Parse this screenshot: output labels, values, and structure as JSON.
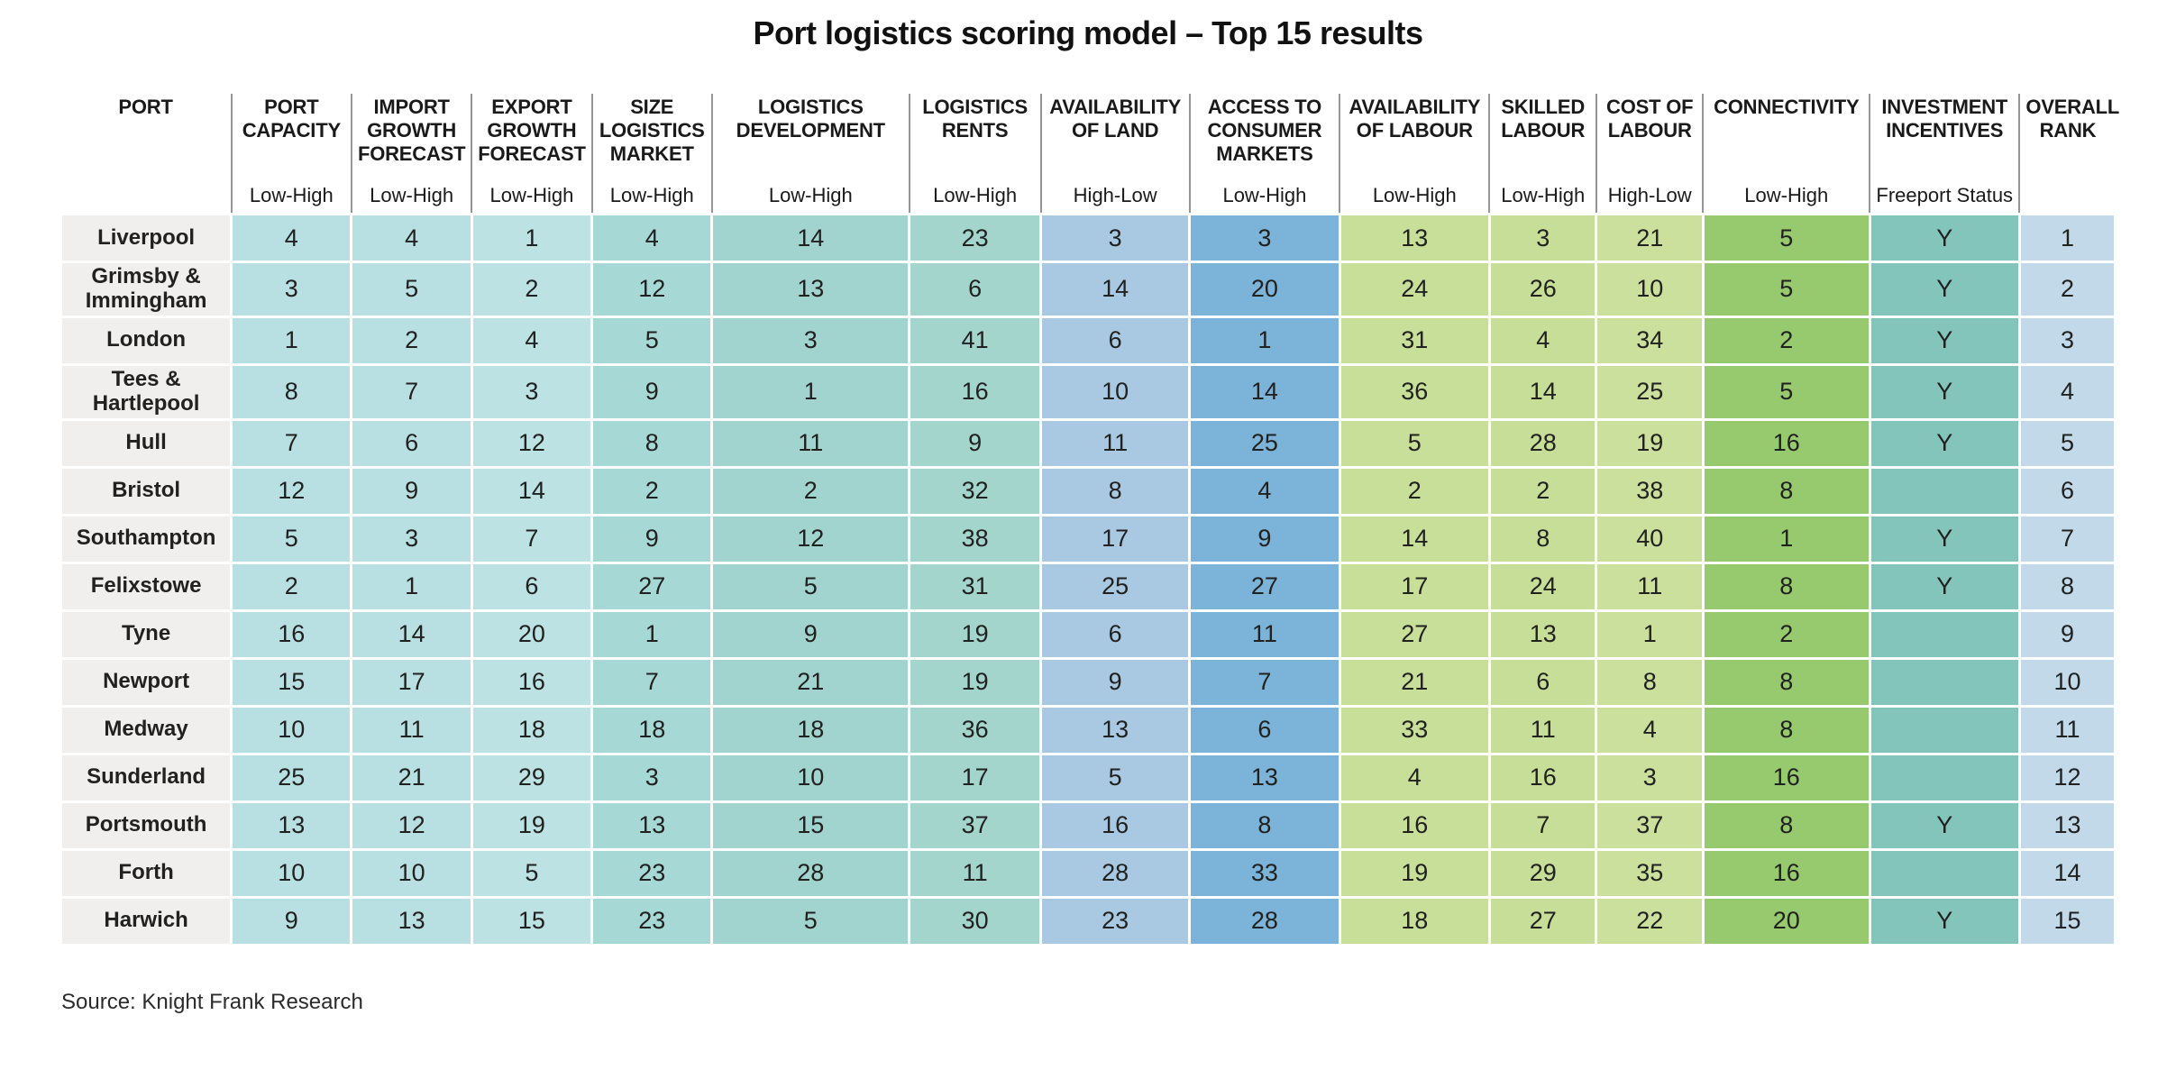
{
  "title": "Port logistics scoring model – Top 15 results",
  "source": "Source: Knight Frank Research",
  "chart_data": {
    "type": "table",
    "title": "Port logistics scoring model – Top 15 results",
    "columns": [
      {
        "key": "port",
        "label": "PORT",
        "sublabel": "",
        "color": "#f0efed"
      },
      {
        "key": "port-capacity",
        "label": "PORT CAPACITY",
        "sublabel": "Low-High",
        "color": "#b8e0e2"
      },
      {
        "key": "import-growth",
        "label": "IMPORT GROWTH FORECAST",
        "sublabel": "Low-High",
        "color": "#b8e0e2"
      },
      {
        "key": "export-growth",
        "label": "EXPORT GROWTH FORECAST",
        "sublabel": "Low-High",
        "color": "#bce2e3"
      },
      {
        "key": "size-logistics",
        "label": "SIZE LOGISTICS MARKET",
        "sublabel": "Low-High",
        "color": "#a6d8d6"
      },
      {
        "key": "logistics-dev",
        "label": "LOGISTICS DEVELOPMENT",
        "sublabel": "Low-High",
        "color": "#a2d4cf"
      },
      {
        "key": "logistics-rents",
        "label": "LOGISTICS RENTS",
        "sublabel": "Low-High",
        "color": "#a3d5cd"
      },
      {
        "key": "availability-land",
        "label": "AVAILABILITY OF LAND",
        "sublabel": "High-Low",
        "color": "#a9c8e2"
      },
      {
        "key": "access-consumer",
        "label": "ACCESS TO CONSUMER MARKETS",
        "sublabel": "Low-High",
        "color": "#7cb3d9"
      },
      {
        "key": "availability-labour",
        "label": "AVAILABILITY OF LABOUR",
        "sublabel": "Low-High",
        "color": "#c8df9a"
      },
      {
        "key": "skilled-labour",
        "label": "SKILLED LABOUR",
        "sublabel": "Low-High",
        "color": "#c7de98"
      },
      {
        "key": "cost-of-labour",
        "label": "COST OF LABOUR",
        "sublabel": "High-Low",
        "color": "#cbe09c"
      },
      {
        "key": "connectivity",
        "label": "CONNECTIVITY",
        "sublabel": "Low-High",
        "color": "#97c96e"
      },
      {
        "key": "investment",
        "label": "INVESTMENT INCENTIVES",
        "sublabel": "Freeport Status",
        "color": "#83c5bb"
      },
      {
        "key": "overall-rank",
        "label": "OVERALL RANK",
        "sublabel": "",
        "color": "#c2d9ea"
      }
    ],
    "col_widths_pct": [
      8.3,
      5.85,
      5.85,
      5.85,
      5.85,
      9.6,
      6.4,
      7.25,
      7.3,
      7.3,
      5.2,
      5.2,
      8.1,
      7.3,
      4.65
    ],
    "rows": [
      {
        "port": "Liverpool",
        "values": [
          "4",
          "4",
          "1",
          "4",
          "14",
          "23",
          "3",
          "3",
          "13",
          "3",
          "21",
          "5",
          "Y",
          "1"
        ]
      },
      {
        "port": "Grimsby & Immingham",
        "values": [
          "3",
          "5",
          "2",
          "12",
          "13",
          "6",
          "14",
          "20",
          "24",
          "26",
          "10",
          "5",
          "Y",
          "2"
        ]
      },
      {
        "port": "London",
        "values": [
          "1",
          "2",
          "4",
          "5",
          "3",
          "41",
          "6",
          "1",
          "31",
          "4",
          "34",
          "2",
          "Y",
          "3"
        ]
      },
      {
        "port": "Tees & Hartlepool",
        "values": [
          "8",
          "7",
          "3",
          "9",
          "1",
          "16",
          "10",
          "14",
          "36",
          "14",
          "25",
          "5",
          "Y",
          "4"
        ]
      },
      {
        "port": "Hull",
        "values": [
          "7",
          "6",
          "12",
          "8",
          "11",
          "9",
          "11",
          "25",
          "5",
          "28",
          "19",
          "16",
          "Y",
          "5"
        ]
      },
      {
        "port": "Bristol",
        "values": [
          "12",
          "9",
          "14",
          "2",
          "2",
          "32",
          "8",
          "4",
          "2",
          "2",
          "38",
          "8",
          "",
          "6"
        ]
      },
      {
        "port": "Southampton",
        "values": [
          "5",
          "3",
          "7",
          "9",
          "12",
          "38",
          "17",
          "9",
          "14",
          "8",
          "40",
          "1",
          "Y",
          "7"
        ]
      },
      {
        "port": "Felixstowe",
        "values": [
          "2",
          "1",
          "6",
          "27",
          "5",
          "31",
          "25",
          "27",
          "17",
          "24",
          "11",
          "8",
          "Y",
          "8"
        ]
      },
      {
        "port": "Tyne",
        "values": [
          "16",
          "14",
          "20",
          "1",
          "9",
          "19",
          "6",
          "11",
          "27",
          "13",
          "1",
          "2",
          "",
          "9"
        ]
      },
      {
        "port": "Newport",
        "values": [
          "15",
          "17",
          "16",
          "7",
          "21",
          "19",
          "9",
          "7",
          "21",
          "6",
          "8",
          "8",
          "",
          "10"
        ]
      },
      {
        "port": "Medway",
        "values": [
          "10",
          "11",
          "18",
          "18",
          "18",
          "36",
          "13",
          "6",
          "33",
          "11",
          "4",
          "8",
          "",
          "11"
        ]
      },
      {
        "port": "Sunderland",
        "values": [
          "25",
          "21",
          "29",
          "3",
          "10",
          "17",
          "5",
          "13",
          "4",
          "16",
          "3",
          "16",
          "",
          "12"
        ]
      },
      {
        "port": "Portsmouth",
        "values": [
          "13",
          "12",
          "19",
          "13",
          "15",
          "37",
          "16",
          "8",
          "16",
          "7",
          "37",
          "8",
          "Y",
          "13"
        ]
      },
      {
        "port": "Forth",
        "values": [
          "10",
          "10",
          "5",
          "23",
          "28",
          "11",
          "28",
          "33",
          "19",
          "29",
          "35",
          "16",
          "",
          "14"
        ]
      },
      {
        "port": "Harwich",
        "values": [
          "9",
          "13",
          "15",
          "23",
          "5",
          "30",
          "23",
          "28",
          "18",
          "27",
          "22",
          "20",
          "Y",
          "15"
        ]
      }
    ],
    "header_divider_color": "#969696",
    "text_color": "#21211f",
    "legend_position": "none",
    "grid": false
  }
}
